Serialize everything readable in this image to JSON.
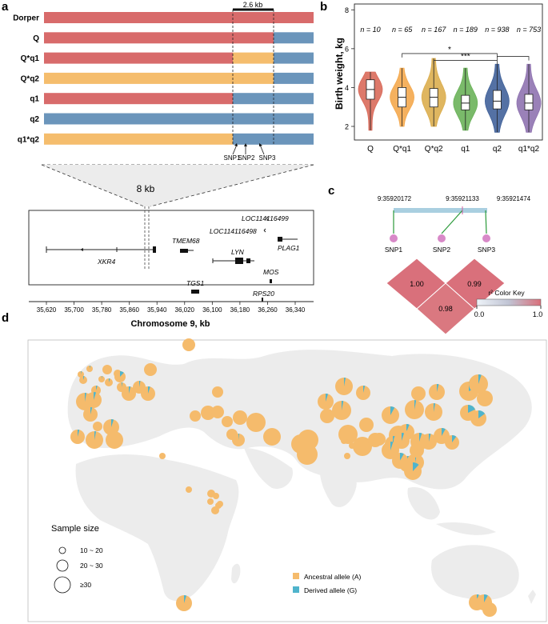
{
  "panel_a": {
    "letter": "a",
    "region_length": "2.6 kb",
    "haplotypes": [
      {
        "name": "Dorper",
        "left": "red",
        "mid": "red",
        "right": "red"
      },
      {
        "name": "Q",
        "left": "red",
        "mid": "red",
        "right": "blue"
      },
      {
        "name": "Q*q1",
        "left": "red",
        "mid": "orange",
        "right": "blue"
      },
      {
        "name": "Q*q2",
        "left": "orange",
        "mid": "orange",
        "right": "blue"
      },
      {
        "name": "q1",
        "left": "red",
        "mid": "blue",
        "right": "blue"
      },
      {
        "name": "q2",
        "left": "blue",
        "mid": "blue",
        "right": "blue"
      },
      {
        "name": "q1*q2",
        "left": "orange",
        "mid": "blue",
        "right": "blue"
      }
    ],
    "snps": [
      "SNP1",
      "SNP2",
      "SNP3"
    ],
    "zoom_label": "8 kb",
    "genes": [
      "LOC114116499",
      "LOC114116498",
      "TMEM68",
      "PLAG1",
      "LYN",
      "XKR4",
      "MOS",
      "TGS1",
      "RPS20"
    ],
    "x_ticks": [
      "35,620",
      "35,700",
      "35,780",
      "35,860",
      "35,940",
      "36,020",
      "36,100",
      "36,180",
      "36,260",
      "36,340"
    ],
    "x_label": "Chromosome 9,  kb"
  },
  "chart_data": [
    {
      "type": "violin",
      "panel": "b",
      "categories": [
        "Q",
        "Q*q1",
        "Q*q2",
        "q1",
        "q2",
        "q1*q2"
      ],
      "n_labels": [
        "n = 10",
        "n = 65",
        "n = 167",
        "n = 189",
        "n = 938",
        "n = 753"
      ],
      "medians": [
        3.9,
        3.5,
        3.5,
        3.2,
        3.3,
        3.2
      ],
      "q1": [
        3.4,
        3.0,
        3.0,
        2.85,
        2.9,
        2.85
      ],
      "q3": [
        4.4,
        4.0,
        3.95,
        3.6,
        3.85,
        3.65
      ],
      "whisker_low": [
        1.8,
        2.0,
        2.0,
        1.8,
        1.7,
        1.7
      ],
      "whisker_high": [
        4.8,
        5.0,
        5.5,
        5.0,
        5.2,
        5.2
      ],
      "colors": [
        "#d96a5a",
        "#f4a94e",
        "#dcae4f",
        "#6bb35a",
        "#41629a",
        "#8f73b0"
      ],
      "ylabel": "Birth weight, kg",
      "ylim": [
        1.3,
        8.3
      ],
      "yticks": [
        "2",
        "4",
        "6",
        "8"
      ],
      "significance": [
        {
          "pair": [
            "Q*q1",
            "q2"
          ],
          "label": "*"
        },
        {
          "pair": [
            "Q*q2",
            "q2"
          ],
          "label": "***"
        },
        {
          "pair": [
            "q2",
            "q1*q2"
          ],
          "label": ""
        }
      ]
    },
    {
      "type": "heatmap",
      "panel": "c",
      "positions": [
        "9:35920172",
        "9:35921133",
        "9:35921474"
      ],
      "snps": [
        "SNP1",
        "SNP2",
        "SNP3"
      ],
      "r2_values": [
        {
          "pair": [
            "SNP1",
            "SNP2"
          ],
          "value": "1.00"
        },
        {
          "pair": [
            "SNP2",
            "SNP3"
          ],
          "value": "0.99"
        },
        {
          "pair": [
            "SNP1",
            "SNP3"
          ],
          "value": "0.98"
        }
      ],
      "color_key_title": "r² Color Key",
      "color_key_min": "0.0",
      "color_key_max": "1.0"
    }
  ],
  "panel_b": {
    "letter": "b"
  },
  "panel_c": {
    "letter": "c"
  },
  "panel_d": {
    "letter": "d",
    "size_legend_title": "Sample size",
    "size_legend": [
      "10 ~ 20",
      "20 ~ 30",
      "≥30"
    ],
    "allele_legend": [
      {
        "label": "Ancestral allele (A)",
        "color": "#f5bb6c"
      },
      {
        "label": "Derived allele (G)",
        "color": "#4fb4cc"
      }
    ],
    "pies": [
      [
        4,
        0.04
      ],
      [
        4,
        0.04
      ],
      [
        5,
        0.05
      ],
      [
        6,
        0.05
      ],
      [
        6,
        0
      ],
      [
        5,
        0
      ],
      [
        4,
        0.03
      ],
      [
        5,
        0.05
      ],
      [
        7,
        0.12
      ],
      [
        9,
        0.04
      ],
      [
        8,
        0.03
      ],
      [
        6,
        0.03
      ],
      [
        9,
        0.05
      ],
      [
        8,
        0
      ],
      [
        10,
        0.05
      ],
      [
        11,
        0.03
      ],
      [
        9,
        0.04
      ],
      [
        6,
        0
      ],
      [
        9,
        0.04
      ],
      [
        11,
        0.03
      ],
      [
        11,
        0
      ],
      [
        10,
        0.05
      ],
      [
        8,
        0
      ],
      [
        7,
        0
      ],
      [
        7,
        0
      ],
      [
        9,
        0
      ],
      [
        8,
        0
      ],
      [
        7,
        0
      ],
      [
        7,
        0
      ],
      [
        8,
        0.02
      ],
      [
        9,
        0
      ],
      [
        12,
        0
      ],
      [
        11,
        0
      ],
      [
        13,
        0
      ],
      [
        12,
        0.02
      ],
      [
        13,
        0
      ],
      [
        4,
        0
      ],
      [
        4,
        0
      ],
      [
        5,
        0
      ],
      [
        4,
        0
      ],
      [
        4,
        0
      ],
      [
        4,
        0
      ],
      [
        5,
        0
      ],
      [
        4,
        0
      ],
      [
        10,
        0.05
      ],
      [
        11,
        0.03
      ],
      [
        9,
        0.04
      ],
      [
        9,
        0
      ],
      [
        12,
        0.03
      ],
      [
        12,
        0
      ],
      [
        9,
        0
      ],
      [
        11,
        0.08
      ],
      [
        10,
        0.06
      ],
      [
        12,
        0.03
      ],
      [
        10,
        0.04
      ],
      [
        9,
        0
      ],
      [
        11,
        0.03
      ],
      [
        12,
        0
      ],
      [
        10,
        0.05
      ],
      [
        10,
        0.05
      ],
      [
        12,
        0
      ],
      [
        9,
        0
      ],
      [
        8,
        0
      ],
      [
        11,
        0.05
      ],
      [
        10,
        0.08
      ],
      [
        10,
        0.04
      ],
      [
        11,
        0.03
      ],
      [
        9,
        0.03
      ],
      [
        11,
        0.12
      ],
      [
        9,
        0.1
      ],
      [
        10,
        0.08
      ],
      [
        11,
        0.05
      ],
      [
        10,
        0.04
      ],
      [
        12,
        0.18
      ],
      [
        10,
        0.18
      ],
      [
        10,
        0.15
      ],
      [
        10,
        0
      ],
      [
        12,
        0.05
      ],
      [
        4,
        0
      ],
      [
        4,
        0
      ],
      [
        4,
        0
      ],
      [
        4,
        0
      ],
      [
        4,
        0
      ],
      [
        10,
        0.05
      ],
      [
        10,
        0.04
      ],
      [
        10,
        0.08
      ],
      [
        9,
        0
      ]
    ]
  }
}
